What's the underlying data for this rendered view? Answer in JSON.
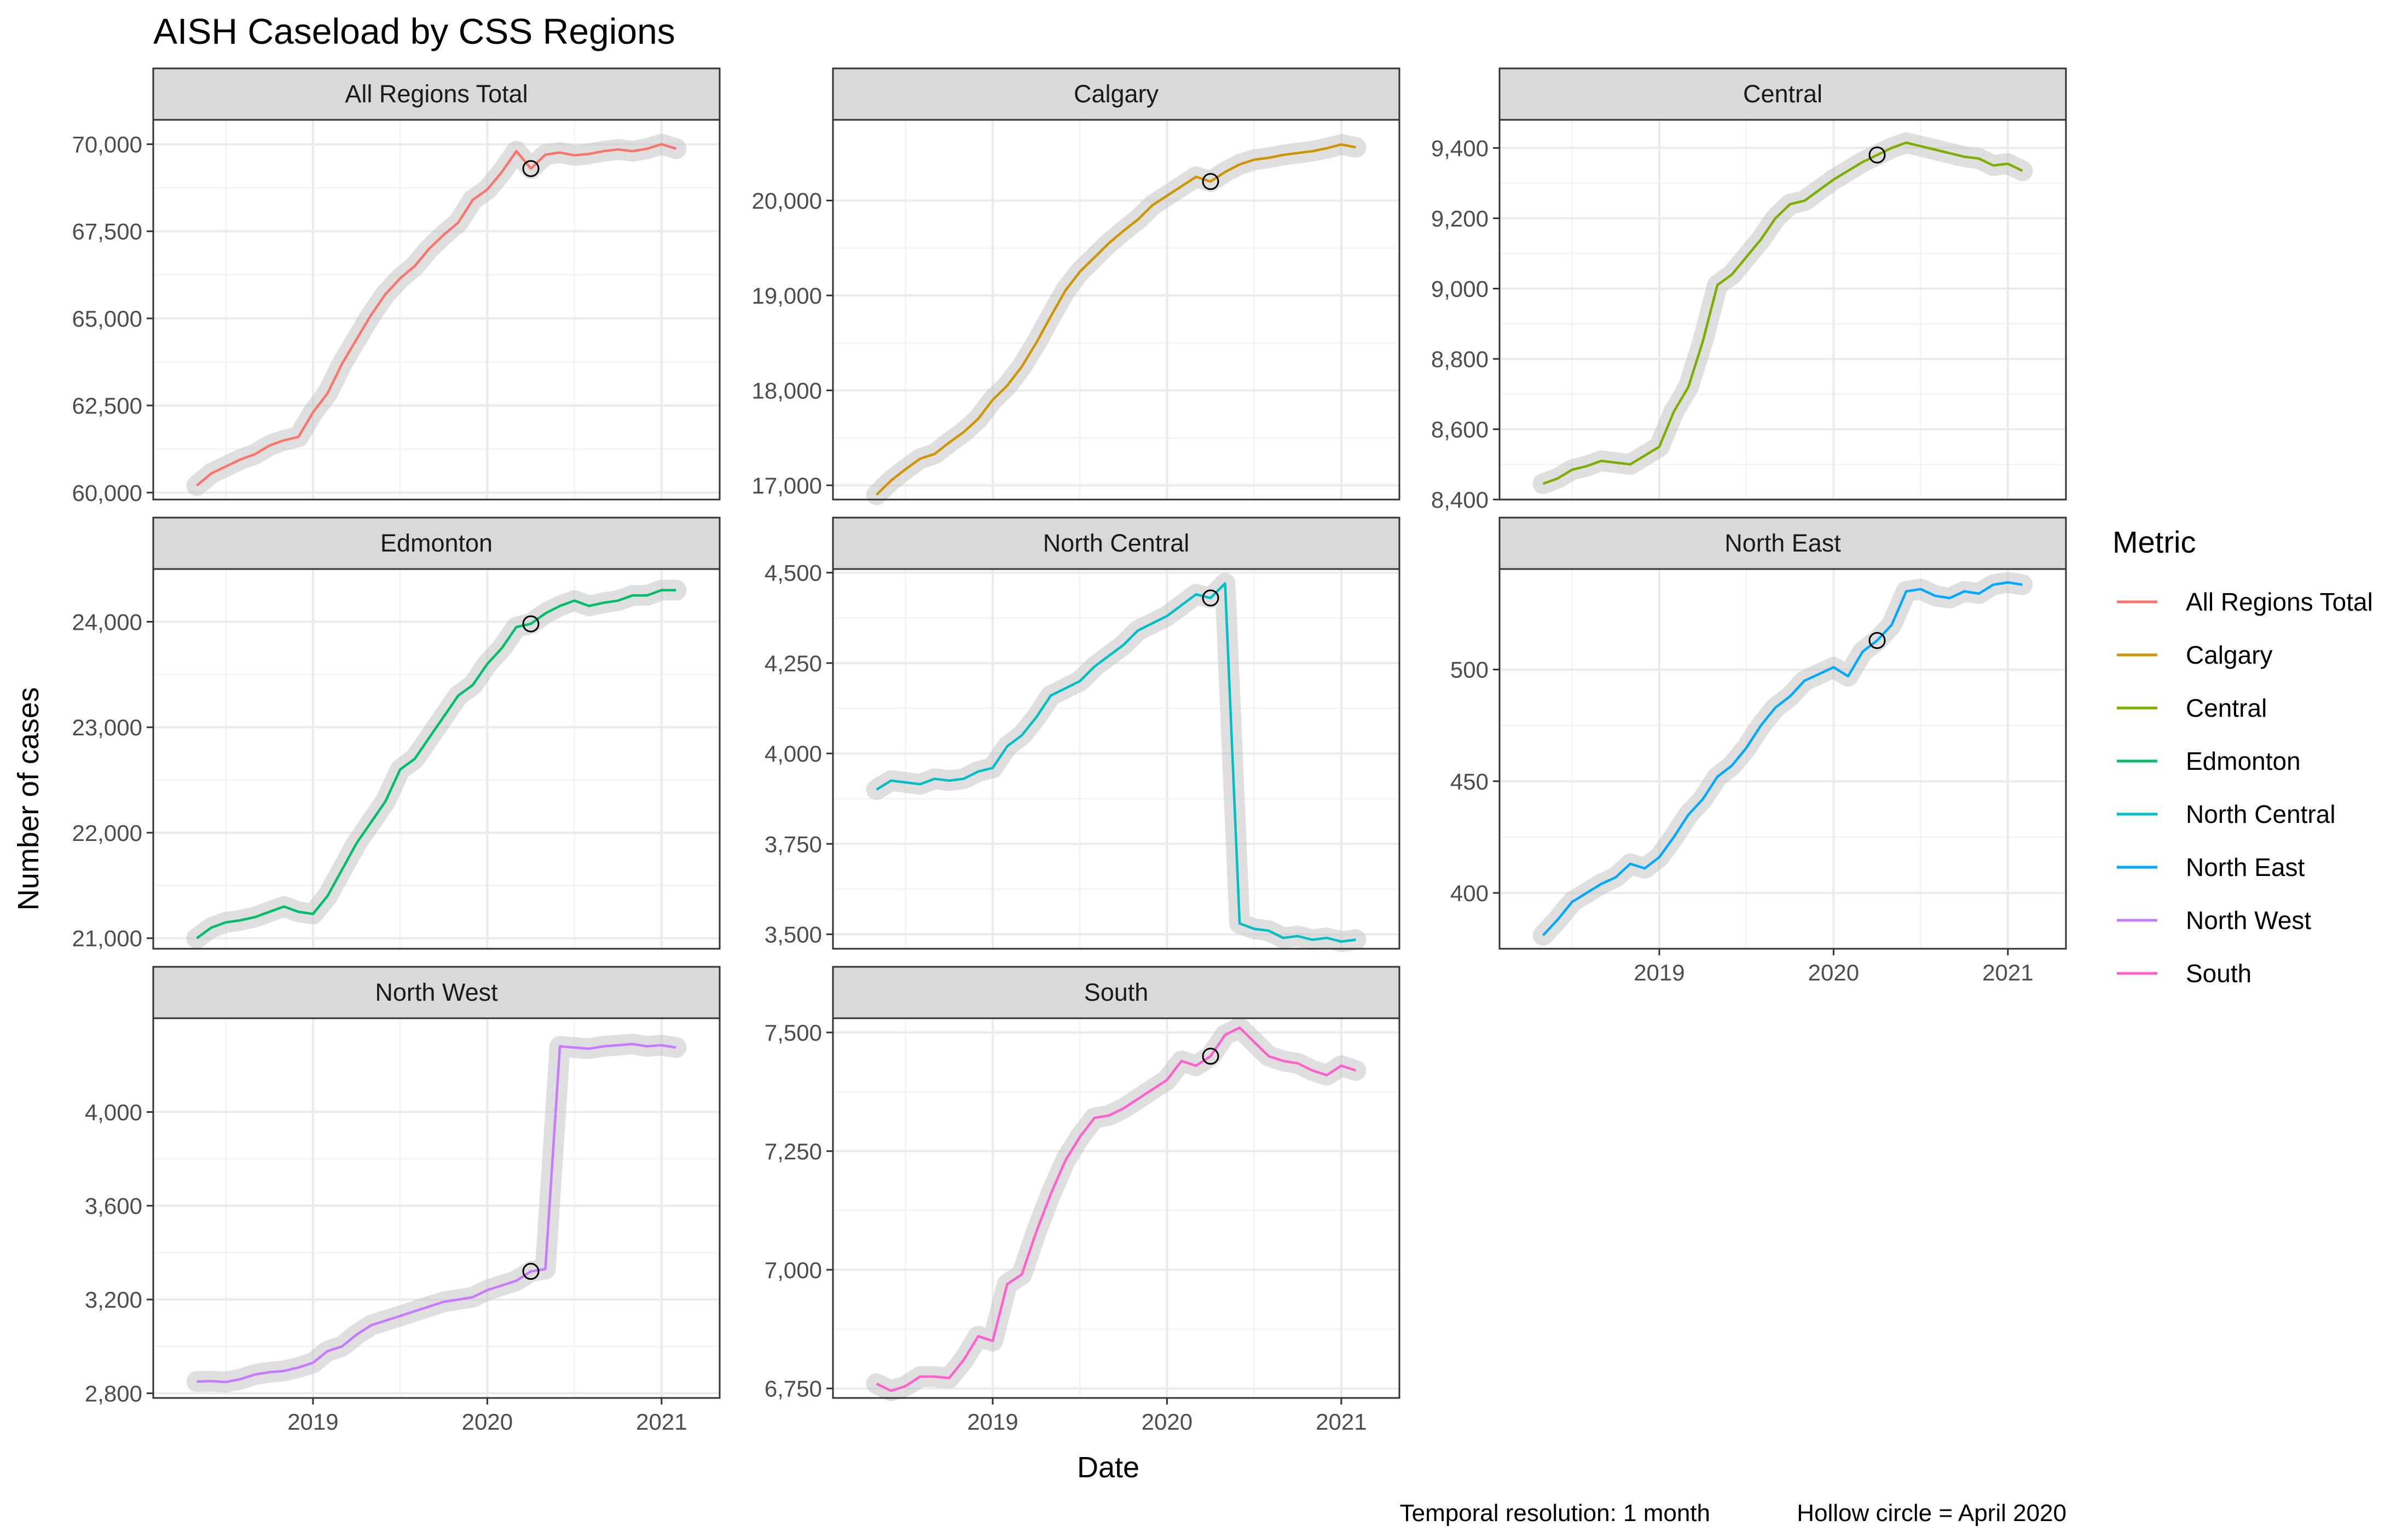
{
  "title": "AISH Caseload by CSS Regions",
  "xlabel": "Date",
  "ylabel": "Number of cases",
  "caption": {
    "resolution": "Temporal resolution: 1 month",
    "marker_note": "Hollow circle = April 2020"
  },
  "legend": {
    "title": "Metric",
    "position": "right",
    "items": [
      {
        "label": "All Regions Total",
        "color": "#F8766D"
      },
      {
        "label": "Calgary",
        "color": "#CD9600"
      },
      {
        "label": "Central",
        "color": "#7CAE00"
      },
      {
        "label": "Edmonton",
        "color": "#00BE67"
      },
      {
        "label": "North Central",
        "color": "#00BFC4"
      },
      {
        "label": "North East",
        "color": "#00A9FF"
      },
      {
        "label": "North West",
        "color": "#C77CFF"
      },
      {
        "label": "South",
        "color": "#FF61CC"
      }
    ]
  },
  "chart_data": {
    "type": "line",
    "x_units": "date (monthly)",
    "x_range": [
      "2018-02",
      "2021-05"
    ],
    "x_ticks": [
      {
        "date": "2019-01",
        "label": "2019"
      },
      {
        "date": "2020-01",
        "label": "2020"
      },
      {
        "date": "2021-01",
        "label": "2021"
      }
    ],
    "months": [
      "2018-05",
      "2018-06",
      "2018-07",
      "2018-08",
      "2018-09",
      "2018-10",
      "2018-11",
      "2018-12",
      "2019-01",
      "2019-02",
      "2019-03",
      "2019-04",
      "2019-05",
      "2019-06",
      "2019-07",
      "2019-08",
      "2019-09",
      "2019-10",
      "2019-11",
      "2019-12",
      "2020-01",
      "2020-02",
      "2020-03",
      "2020-04",
      "2020-05",
      "2020-06",
      "2020-07",
      "2020-08",
      "2020-09",
      "2020-10",
      "2020-11",
      "2020-12",
      "2021-01",
      "2021-02"
    ],
    "highlight_month": "2020-04",
    "grid": true,
    "facets": [
      {
        "title": "All Regions Total",
        "color": "#F8766D",
        "row": 0,
        "col": 0,
        "ylim": [
          59800,
          70700
        ],
        "yticks": [
          {
            "v": 60000,
            "label": "60,000"
          },
          {
            "v": 62500,
            "label": "62,500"
          },
          {
            "v": 65000,
            "label": "65,000"
          },
          {
            "v": 67500,
            "label": "67,500"
          },
          {
            "v": 70000,
            "label": "70,000"
          }
        ],
        "values": [
          60200,
          60550,
          60750,
          60950,
          61100,
          61350,
          61500,
          61600,
          62300,
          62850,
          63700,
          64400,
          65100,
          65700,
          66150,
          66500,
          67000,
          67400,
          67750,
          68400,
          68700,
          69200,
          69800,
          69300,
          69700,
          69760,
          69680,
          69720,
          69800,
          69850,
          69800,
          69870,
          70000,
          69870
        ]
      },
      {
        "title": "Calgary",
        "color": "#CD9600",
        "row": 0,
        "col": 1,
        "ylim": [
          16850,
          20850
        ],
        "yticks": [
          {
            "v": 17000,
            "label": "17,000"
          },
          {
            "v": 18000,
            "label": "18,000"
          },
          {
            "v": 19000,
            "label": "19,000"
          },
          {
            "v": 20000,
            "label": "20,000"
          }
        ],
        "values": [
          16900,
          17050,
          17170,
          17280,
          17330,
          17450,
          17560,
          17700,
          17900,
          18050,
          18250,
          18500,
          18780,
          19050,
          19250,
          19400,
          19550,
          19680,
          19800,
          19950,
          20050,
          20150,
          20250,
          20200,
          20300,
          20380,
          20430,
          20450,
          20480,
          20500,
          20520,
          20550,
          20590,
          20560
        ]
      },
      {
        "title": "Central",
        "color": "#7CAE00",
        "row": 0,
        "col": 2,
        "ylim": [
          8400,
          9480
        ],
        "yticks": [
          {
            "v": 8400,
            "label": "8,400"
          },
          {
            "v": 8600,
            "label": "8,600"
          },
          {
            "v": 8800,
            "label": "8,800"
          },
          {
            "v": 9000,
            "label": "9,000"
          },
          {
            "v": 9200,
            "label": "9,200"
          },
          {
            "v": 9400,
            "label": "9,400"
          }
        ],
        "values": [
          8445,
          8460,
          8485,
          8495,
          8510,
          8505,
          8500,
          8525,
          8550,
          8650,
          8720,
          8850,
          9010,
          9040,
          9090,
          9140,
          9200,
          9240,
          9250,
          9280,
          9310,
          9335,
          9360,
          9380,
          9400,
          9415,
          9405,
          9395,
          9385,
          9375,
          9370,
          9350,
          9355,
          9335
        ]
      },
      {
        "title": "Edmonton",
        "color": "#00BE67",
        "row": 1,
        "col": 0,
        "ylim": [
          20900,
          24500
        ],
        "yticks": [
          {
            "v": 21000,
            "label": "21,000"
          },
          {
            "v": 22000,
            "label": "22,000"
          },
          {
            "v": 23000,
            "label": "23,000"
          },
          {
            "v": 24000,
            "label": "24,000"
          }
        ],
        "values": [
          21000,
          21100,
          21150,
          21170,
          21200,
          21250,
          21300,
          21250,
          21230,
          21400,
          21650,
          21900,
          22100,
          22300,
          22600,
          22700,
          22900,
          23100,
          23300,
          23400,
          23600,
          23750,
          23950,
          23980,
          24080,
          24150,
          24200,
          24150,
          24180,
          24200,
          24250,
          24250,
          24300,
          24300
        ]
      },
      {
        "title": "North Central",
        "color": "#00BFC4",
        "row": 1,
        "col": 1,
        "ylim": [
          3460,
          4510
        ],
        "yticks": [
          {
            "v": 3500,
            "label": "3,500"
          },
          {
            "v": 3750,
            "label": "3,750"
          },
          {
            "v": 4000,
            "label": "4,000"
          },
          {
            "v": 4250,
            "label": "4,250"
          },
          {
            "v": 4500,
            "label": "4,500"
          }
        ],
        "values": [
          3900,
          3925,
          3920,
          3915,
          3930,
          3925,
          3930,
          3950,
          3960,
          4020,
          4050,
          4100,
          4160,
          4180,
          4200,
          4240,
          4270,
          4300,
          4340,
          4360,
          4380,
          4410,
          4440,
          4430,
          4470,
          3530,
          3515,
          3510,
          3490,
          3495,
          3485,
          3490,
          3480,
          3485
        ]
      },
      {
        "title": "North East",
        "color": "#00A9FF",
        "row": 1,
        "col": 2,
        "ylim": [
          375,
          545
        ],
        "yticks": [
          {
            "v": 400,
            "label": "400"
          },
          {
            "v": 450,
            "label": "450"
          },
          {
            "v": 500,
            "label": "500"
          }
        ],
        "values": [
          381,
          388,
          396,
          400,
          404,
          407,
          413,
          411,
          416,
          425,
          435,
          442,
          452,
          457,
          465,
          475,
          483,
          488,
          495,
          498,
          501,
          497,
          508,
          513,
          520,
          535,
          536,
          533,
          532,
          535,
          534,
          538,
          539,
          538
        ]
      },
      {
        "title": "North West",
        "color": "#C77CFF",
        "row": 2,
        "col": 0,
        "ylim": [
          2780,
          4400
        ],
        "yticks": [
          {
            "v": 2800,
            "label": "2,800"
          },
          {
            "v": 3200,
            "label": "3,200"
          },
          {
            "v": 3600,
            "label": "3,600"
          },
          {
            "v": 4000,
            "label": "4,000"
          }
        ],
        "values": [
          2850,
          2852,
          2848,
          2860,
          2880,
          2890,
          2895,
          2910,
          2930,
          2980,
          3000,
          3050,
          3090,
          3110,
          3130,
          3150,
          3170,
          3190,
          3200,
          3210,
          3240,
          3260,
          3280,
          3320,
          3330,
          4280,
          4275,
          4270,
          4280,
          4285,
          4290,
          4280,
          4285,
          4275
        ]
      },
      {
        "title": "South",
        "color": "#FF61CC",
        "row": 2,
        "col": 1,
        "ylim": [
          6730,
          7530
        ],
        "yticks": [
          {
            "v": 6750,
            "label": "6,750"
          },
          {
            "v": 7000,
            "label": "7,000"
          },
          {
            "v": 7250,
            "label": "7,250"
          },
          {
            "v": 7500,
            "label": "7,500"
          }
        ],
        "values": [
          6760,
          6745,
          6755,
          6775,
          6775,
          6772,
          6810,
          6860,
          6850,
          6970,
          6990,
          7080,
          7160,
          7230,
          7280,
          7320,
          7325,
          7340,
          7360,
          7380,
          7400,
          7440,
          7430,
          7450,
          7495,
          7510,
          7480,
          7450,
          7440,
          7435,
          7420,
          7410,
          7430,
          7420
        ]
      }
    ]
  }
}
